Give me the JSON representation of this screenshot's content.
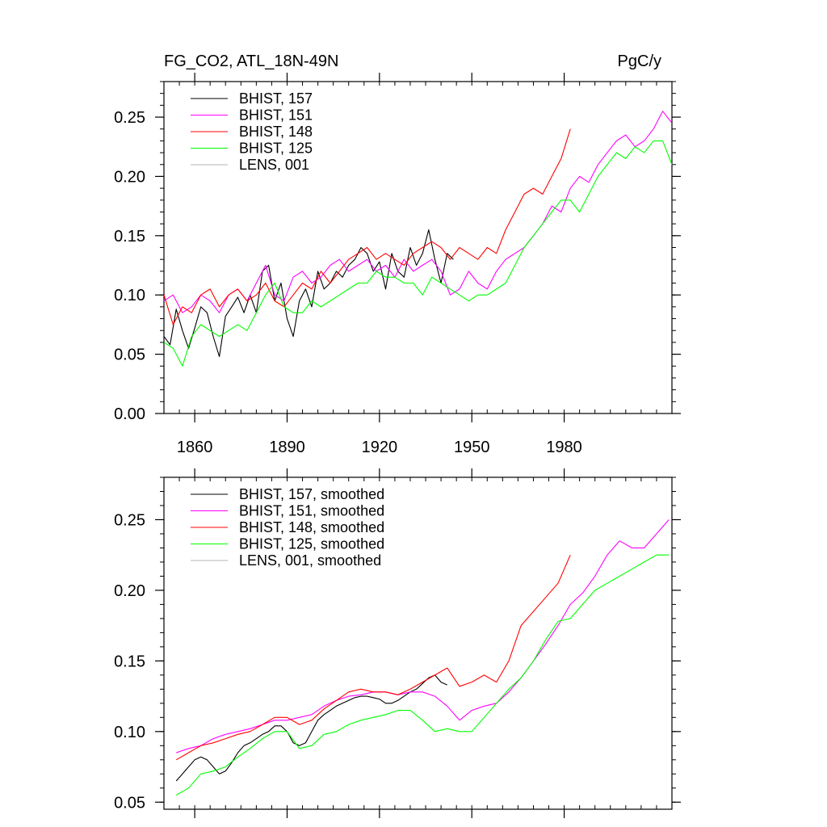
{
  "figure": {
    "title_left": "FG_CO2, ATL_18N-49N",
    "title_right": "PgC/y"
  },
  "chart_data": [
    {
      "type": "line",
      "title": "FG_CO2, ATL_18N-49N",
      "units": "PgC/y",
      "xlim": [
        1850,
        2015
      ],
      "ylim": [
        0.0,
        0.28
      ],
      "xticks": [
        1860,
        1890,
        1920,
        1950,
        1980
      ],
      "xtick_labels": [
        "1860",
        "1890",
        "1920",
        "1950",
        "1980"
      ],
      "yticks": [
        0.0,
        0.05,
        0.1,
        0.15,
        0.2,
        0.25
      ],
      "ytick_labels": [
        "0.00",
        "0.05",
        "0.10",
        "0.15",
        "0.20",
        "0.25"
      ],
      "legend_position": "top-left",
      "series": [
        {
          "name": "BHIST, 157",
          "color": "#000000",
          "x": [
            1850,
            1852,
            1854,
            1856,
            1858,
            1860,
            1862,
            1864,
            1866,
            1868,
            1870,
            1872,
            1874,
            1876,
            1878,
            1880,
            1882,
            1884,
            1886,
            1888,
            1890,
            1892,
            1894,
            1896,
            1898,
            1900,
            1902,
            1904,
            1906,
            1908,
            1910,
            1912,
            1914,
            1916,
            1918,
            1920,
            1922,
            1924,
            1926,
            1928,
            1930,
            1932,
            1934,
            1936,
            1938,
            1940,
            1942,
            1944
          ],
          "values": [
            0.065,
            0.058,
            0.088,
            0.07,
            0.055,
            0.072,
            0.09,
            0.085,
            0.065,
            0.048,
            0.082,
            0.09,
            0.098,
            0.085,
            0.1,
            0.085,
            0.12,
            0.125,
            0.095,
            0.11,
            0.08,
            0.065,
            0.095,
            0.105,
            0.09,
            0.12,
            0.105,
            0.11,
            0.12,
            0.115,
            0.125,
            0.13,
            0.14,
            0.135,
            0.12,
            0.128,
            0.105,
            0.135,
            0.12,
            0.115,
            0.14,
            0.125,
            0.135,
            0.155,
            0.13,
            0.11,
            0.135,
            0.13
          ]
        },
        {
          "name": "BHIST, 151",
          "color": "#ff00ff",
          "x": [
            1850,
            1853,
            1856,
            1859,
            1862,
            1865,
            1868,
            1871,
            1874,
            1877,
            1880,
            1883,
            1886,
            1889,
            1892,
            1895,
            1898,
            1901,
            1904,
            1907,
            1910,
            1913,
            1916,
            1919,
            1922,
            1925,
            1928,
            1931,
            1934,
            1937,
            1940,
            1943,
            1946,
            1949,
            1952,
            1955,
            1958,
            1961,
            1964,
            1967,
            1970,
            1973,
            1976,
            1979,
            1982,
            1985,
            1988,
            1991,
            1994,
            1997,
            2000,
            2003,
            2006,
            2009,
            2012,
            2015
          ],
          "values": [
            0.095,
            0.1,
            0.085,
            0.09,
            0.1,
            0.095,
            0.085,
            0.1,
            0.105,
            0.095,
            0.11,
            0.125,
            0.1,
            0.095,
            0.115,
            0.12,
            0.11,
            0.115,
            0.125,
            0.13,
            0.12,
            0.125,
            0.13,
            0.12,
            0.125,
            0.115,
            0.13,
            0.12,
            0.125,
            0.13,
            0.12,
            0.1,
            0.105,
            0.12,
            0.11,
            0.105,
            0.12,
            0.13,
            0.135,
            0.14,
            0.15,
            0.16,
            0.175,
            0.17,
            0.19,
            0.2,
            0.195,
            0.21,
            0.22,
            0.23,
            0.235,
            0.225,
            0.23,
            0.24,
            0.255,
            0.245
          ]
        },
        {
          "name": "BHIST, 148",
          "color": "#ff0000",
          "x": [
            1850,
            1853,
            1856,
            1859,
            1862,
            1865,
            1868,
            1871,
            1874,
            1877,
            1880,
            1883,
            1886,
            1889,
            1892,
            1895,
            1898,
            1901,
            1904,
            1907,
            1910,
            1913,
            1916,
            1919,
            1922,
            1925,
            1928,
            1931,
            1934,
            1937,
            1940,
            1943,
            1946,
            1949,
            1952,
            1955,
            1958,
            1961,
            1964,
            1967,
            1970,
            1973,
            1976,
            1979,
            1982
          ],
          "values": [
            0.1,
            0.075,
            0.09,
            0.085,
            0.1,
            0.105,
            0.09,
            0.1,
            0.105,
            0.095,
            0.1,
            0.11,
            0.095,
            0.09,
            0.1,
            0.11,
            0.105,
            0.12,
            0.11,
            0.12,
            0.13,
            0.135,
            0.14,
            0.13,
            0.135,
            0.13,
            0.125,
            0.135,
            0.14,
            0.145,
            0.14,
            0.13,
            0.14,
            0.135,
            0.13,
            0.14,
            0.135,
            0.155,
            0.17,
            0.185,
            0.19,
            0.185,
            0.2,
            0.215,
            0.24
          ]
        },
        {
          "name": "BHIST, 125",
          "color": "#00ff00",
          "x": [
            1850,
            1853,
            1856,
            1859,
            1862,
            1865,
            1868,
            1871,
            1874,
            1877,
            1880,
            1883,
            1886,
            1889,
            1892,
            1895,
            1898,
            1901,
            1904,
            1907,
            1910,
            1913,
            1916,
            1919,
            1922,
            1925,
            1928,
            1931,
            1934,
            1937,
            1940,
            1943,
            1946,
            1949,
            1952,
            1955,
            1958,
            1961,
            1964,
            1967,
            1970,
            1973,
            1976,
            1979,
            1982,
            1985,
            1988,
            1991,
            1994,
            1997,
            2000,
            2003,
            2006,
            2009,
            2012,
            2015
          ],
          "values": [
            0.06,
            0.055,
            0.04,
            0.065,
            0.075,
            0.07,
            0.065,
            0.07,
            0.075,
            0.07,
            0.085,
            0.1,
            0.11,
            0.09,
            0.085,
            0.085,
            0.095,
            0.09,
            0.095,
            0.1,
            0.105,
            0.11,
            0.11,
            0.12,
            0.115,
            0.115,
            0.11,
            0.11,
            0.1,
            0.115,
            0.11,
            0.105,
            0.1,
            0.095,
            0.1,
            0.1,
            0.105,
            0.11,
            0.125,
            0.14,
            0.15,
            0.16,
            0.17,
            0.18,
            0.18,
            0.17,
            0.185,
            0.2,
            0.21,
            0.22,
            0.215,
            0.225,
            0.22,
            0.23,
            0.23,
            0.21
          ]
        },
        {
          "name": "LENS, 001",
          "color": "#b4b4b4",
          "x": [],
          "values": []
        }
      ]
    },
    {
      "type": "line",
      "xlim": [
        1850,
        2015
      ],
      "ylim": [
        0.045,
        0.28
      ],
      "xticks": [
        1860,
        1890,
        1920,
        1950,
        1980
      ],
      "yticks": [
        0.05,
        0.1,
        0.15,
        0.2,
        0.25
      ],
      "ytick_labels": [
        "0.05",
        "0.10",
        "0.15",
        "0.20",
        "0.25"
      ],
      "legend_position": "top-left",
      "series": [
        {
          "name": "BHIST, 157, smoothed",
          "color": "#000000",
          "x": [
            1854,
            1856,
            1858,
            1860,
            1862,
            1864,
            1866,
            1868,
            1870,
            1872,
            1874,
            1876,
            1878,
            1880,
            1882,
            1884,
            1886,
            1888,
            1890,
            1892,
            1894,
            1896,
            1898,
            1900,
            1902,
            1904,
            1906,
            1908,
            1910,
            1912,
            1914,
            1916,
            1918,
            1920,
            1922,
            1924,
            1926,
            1928,
            1930,
            1932,
            1934,
            1936,
            1938,
            1940,
            1942
          ],
          "values": [
            0.065,
            0.07,
            0.075,
            0.08,
            0.082,
            0.08,
            0.075,
            0.07,
            0.072,
            0.078,
            0.085,
            0.09,
            0.092,
            0.095,
            0.098,
            0.1,
            0.104,
            0.104,
            0.1,
            0.092,
            0.09,
            0.092,
            0.1,
            0.108,
            0.112,
            0.115,
            0.118,
            0.12,
            0.122,
            0.124,
            0.125,
            0.125,
            0.124,
            0.123,
            0.12,
            0.12,
            0.122,
            0.125,
            0.128,
            0.13,
            0.134,
            0.138,
            0.14,
            0.135,
            0.133
          ]
        },
        {
          "name": "BHIST, 151, smoothed",
          "color": "#ff00ff",
          "x": [
            1854,
            1858,
            1862,
            1866,
            1870,
            1874,
            1878,
            1882,
            1886,
            1890,
            1894,
            1898,
            1902,
            1906,
            1910,
            1914,
            1918,
            1922,
            1926,
            1930,
            1934,
            1938,
            1942,
            1946,
            1950,
            1954,
            1958,
            1962,
            1966,
            1970,
            1974,
            1978,
            1982,
            1986,
            1990,
            1994,
            1998,
            2002,
            2006,
            2010,
            2014
          ],
          "values": [
            0.085,
            0.088,
            0.09,
            0.095,
            0.098,
            0.1,
            0.102,
            0.105,
            0.108,
            0.108,
            0.11,
            0.112,
            0.118,
            0.122,
            0.125,
            0.126,
            0.128,
            0.128,
            0.126,
            0.128,
            0.128,
            0.125,
            0.118,
            0.108,
            0.115,
            0.118,
            0.12,
            0.128,
            0.138,
            0.15,
            0.162,
            0.175,
            0.19,
            0.198,
            0.21,
            0.225,
            0.235,
            0.23,
            0.23,
            0.24,
            0.25
          ]
        },
        {
          "name": "BHIST, 148, smoothed",
          "color": "#ff0000",
          "x": [
            1854,
            1858,
            1862,
            1866,
            1870,
            1874,
            1878,
            1882,
            1886,
            1890,
            1894,
            1898,
            1902,
            1906,
            1910,
            1914,
            1918,
            1922,
            1926,
            1930,
            1934,
            1938,
            1942,
            1946,
            1950,
            1954,
            1958,
            1962,
            1966,
            1970,
            1974,
            1978,
            1982
          ],
          "values": [
            0.08,
            0.085,
            0.09,
            0.092,
            0.095,
            0.098,
            0.1,
            0.105,
            0.11,
            0.11,
            0.105,
            0.108,
            0.116,
            0.122,
            0.128,
            0.13,
            0.128,
            0.128,
            0.126,
            0.13,
            0.135,
            0.14,
            0.145,
            0.132,
            0.135,
            0.14,
            0.135,
            0.15,
            0.175,
            0.185,
            0.195,
            0.205,
            0.225
          ]
        },
        {
          "name": "BHIST, 125, smoothed",
          "color": "#00ff00",
          "x": [
            1854,
            1858,
            1862,
            1866,
            1870,
            1874,
            1878,
            1882,
            1886,
            1890,
            1894,
            1898,
            1902,
            1906,
            1910,
            1914,
            1918,
            1922,
            1926,
            1930,
            1934,
            1938,
            1942,
            1946,
            1950,
            1954,
            1958,
            1962,
            1966,
            1970,
            1974,
            1978,
            1982,
            1986,
            1990,
            1994,
            1998,
            2002,
            2006,
            2010,
            2014
          ],
          "values": [
            0.055,
            0.06,
            0.07,
            0.072,
            0.075,
            0.082,
            0.088,
            0.095,
            0.1,
            0.1,
            0.088,
            0.09,
            0.098,
            0.1,
            0.105,
            0.108,
            0.11,
            0.112,
            0.115,
            0.115,
            0.108,
            0.1,
            0.102,
            0.1,
            0.1,
            0.11,
            0.12,
            0.13,
            0.138,
            0.15,
            0.165,
            0.178,
            0.18,
            0.19,
            0.2,
            0.205,
            0.21,
            0.215,
            0.22,
            0.225,
            0.225
          ]
        },
        {
          "name": "LENS, 001, smoothed",
          "color": "#b4b4b4",
          "x": [],
          "values": []
        }
      ]
    }
  ]
}
